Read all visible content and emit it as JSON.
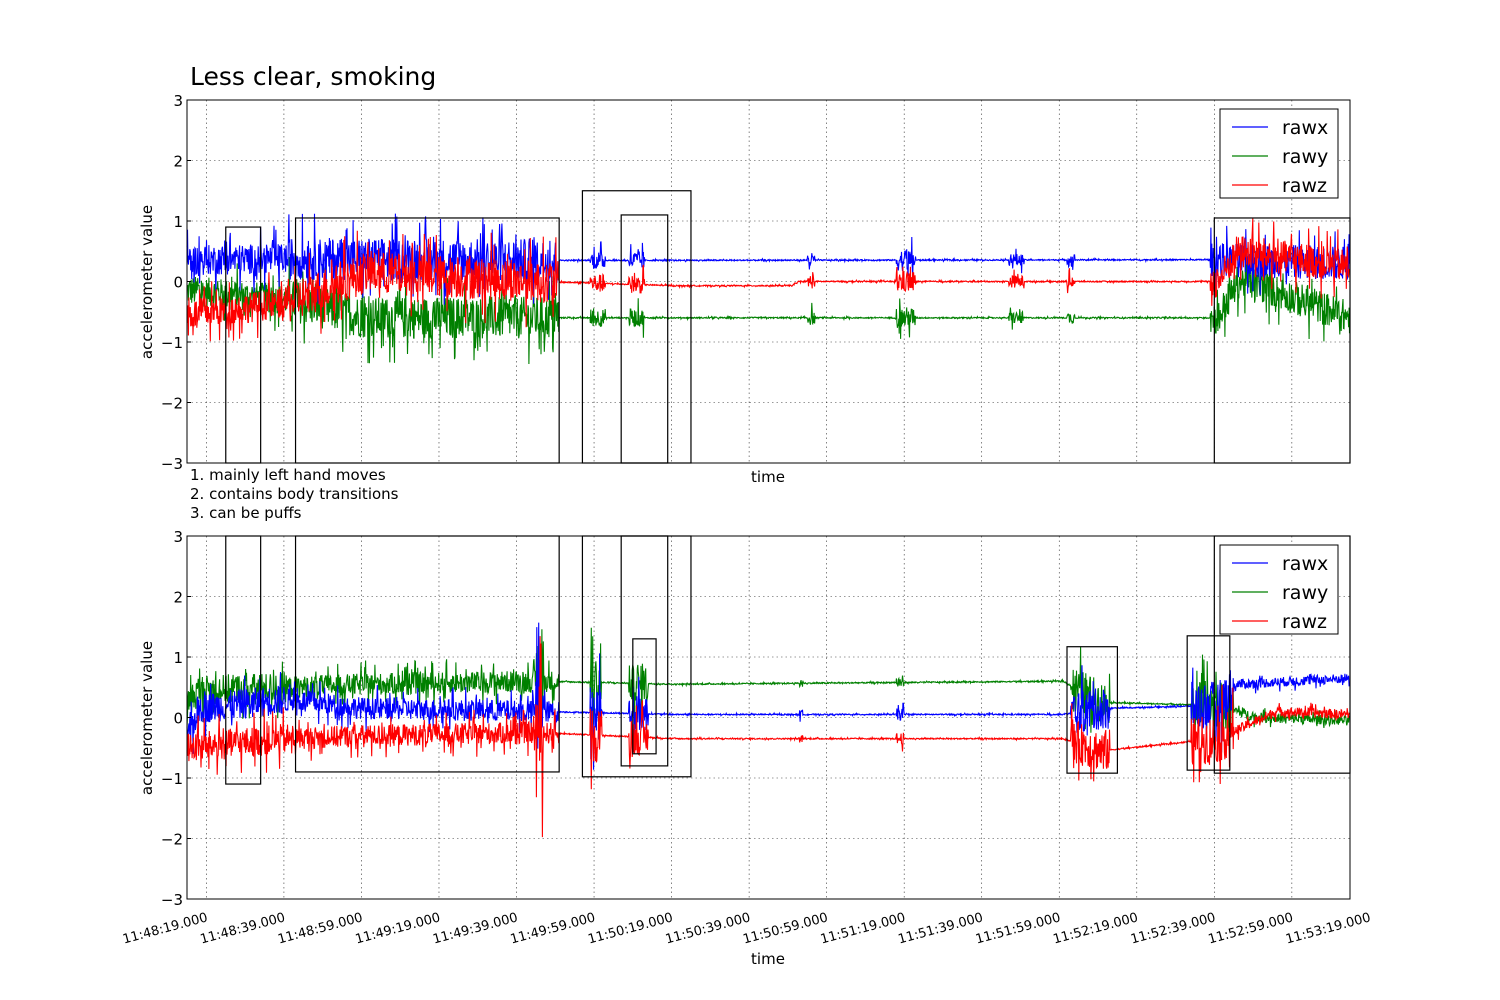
{
  "chart_data": [
    {
      "type": "line",
      "title": "Less clear, smoking",
      "xlabel": "time",
      "ylabel": "accelerometer value",
      "ylim": [
        -3,
        3
      ],
      "yticks": [
        "3",
        "2",
        "1",
        "0",
        "−1",
        "−2",
        "−3"
      ],
      "xlim": [
        "11:48:14",
        "11:53:14"
      ],
      "grid": true,
      "legend_position": "top-right",
      "legend": [
        "rawx",
        "rawy",
        "rawz"
      ],
      "colors": {
        "rawx": "#0000ff",
        "rawy": "#008000",
        "rawz": "#ff0000"
      },
      "series": [
        {
          "name": "rawx",
          "baseline": [
            {
              "x": "11:48:14",
              "y": 0.35
            },
            {
              "x": "11:48:40",
              "y": 0.38
            },
            {
              "x": "11:49:45",
              "y": 0.35
            },
            {
              "x": "11:50:20",
              "y": 0.35
            },
            {
              "x": "11:52:40",
              "y": 0.36
            },
            {
              "x": "11:53:14",
              "y": 0.3
            }
          ]
        },
        {
          "name": "rawy",
          "baseline": [
            {
              "x": "11:48:14",
              "y": -0.15
            },
            {
              "x": "11:48:40",
              "y": -0.3
            },
            {
              "x": "11:49:00",
              "y": -0.6
            },
            {
              "x": "11:49:45",
              "y": -0.6
            },
            {
              "x": "11:52:40",
              "y": -0.6
            },
            {
              "x": "11:52:45",
              "y": 0.0
            },
            {
              "x": "11:52:50",
              "y": -0.05
            },
            {
              "x": "11:53:14",
              "y": -0.6
            }
          ]
        },
        {
          "name": "rawz",
          "baseline": [
            {
              "x": "11:48:14",
              "y": -0.55
            },
            {
              "x": "11:48:40",
              "y": -0.35
            },
            {
              "x": "11:49:00",
              "y": 0.15
            },
            {
              "x": "11:49:45",
              "y": 0.0
            },
            {
              "x": "11:50:20",
              "y": -0.07
            },
            {
              "x": "11:50:50",
              "y": -0.07
            },
            {
              "x": "11:50:52",
              "y": 0.0
            },
            {
              "x": "11:52:40",
              "y": 0.0
            },
            {
              "x": "11:52:45",
              "y": 0.5
            },
            {
              "x": "11:53:14",
              "y": 0.25
            }
          ]
        }
      ],
      "highlight_boxes": [
        {
          "x": [
            "11:48:24",
            "11:48:33"
          ],
          "y": [
            -3,
            0.9
          ]
        },
        {
          "x": [
            "11:48:42",
            "11:49:50"
          ],
          "y": [
            -3,
            1.05
          ]
        },
        {
          "x": [
            "11:49:56",
            "11:50:24"
          ],
          "y": [
            -3,
            1.5
          ]
        },
        {
          "x": [
            "11:50:06",
            "11:50:18"
          ],
          "y": [
            -3,
            1.1
          ]
        },
        {
          "x": [
            "11:52:39",
            "11:53:14"
          ],
          "y": [
            -3,
            1.05
          ]
        }
      ]
    },
    {
      "type": "line",
      "xlabel": "time",
      "ylabel": "accelerometer value",
      "ylim": [
        -3,
        3
      ],
      "yticks": [
        "3",
        "2",
        "1",
        "0",
        "−1",
        "−2",
        "−3"
      ],
      "xlim": [
        "11:48:14",
        "11:53:14"
      ],
      "xticks": [
        "11:48:19.000",
        "11:48:39.000",
        "11:48:59.000",
        "11:49:19.000",
        "11:49:39.000",
        "11:49:59.000",
        "11:50:19.000",
        "11:50:39.000",
        "11:50:59.000",
        "11:51:19.000",
        "11:51:39.000",
        "11:51:59.000",
        "11:52:19.000",
        "11:52:39.000",
        "11:52:59.000",
        "11:53:19.000"
      ],
      "grid": true,
      "legend_position": "top-right",
      "legend": [
        "rawx",
        "rawy",
        "rawz"
      ],
      "colors": {
        "rawx": "#0000ff",
        "rawy": "#008000",
        "rawz": "#ff0000"
      },
      "series": [
        {
          "name": "rawx",
          "baseline": [
            {
              "x": "11:48:14",
              "y": -0.4
            },
            {
              "x": "11:48:17",
              "y": 0.15
            },
            {
              "x": "11:48:40",
              "y": 0.3
            },
            {
              "x": "11:49:00",
              "y": 0.15
            },
            {
              "x": "11:49:45",
              "y": 0.1
            },
            {
              "x": "11:50:20",
              "y": 0.05
            },
            {
              "x": "11:52:00",
              "y": 0.05
            },
            {
              "x": "11:52:10",
              "y": 0.15
            },
            {
              "x": "11:52:40",
              "y": 0.2
            },
            {
              "x": "11:52:45",
              "y": 0.55
            },
            {
              "x": "11:53:14",
              "y": 0.65
            }
          ]
        },
        {
          "name": "rawy",
          "baseline": [
            {
              "x": "11:48:14",
              "y": 0.2
            },
            {
              "x": "11:48:17",
              "y": 0.45
            },
            {
              "x": "11:48:40",
              "y": 0.5
            },
            {
              "x": "11:49:00",
              "y": 0.55
            },
            {
              "x": "11:49:45",
              "y": 0.6
            },
            {
              "x": "11:50:20",
              "y": 0.55
            },
            {
              "x": "11:52:00",
              "y": 0.6
            },
            {
              "x": "11:52:10",
              "y": 0.25
            },
            {
              "x": "11:52:40",
              "y": 0.2
            },
            {
              "x": "11:52:50",
              "y": 0.0
            },
            {
              "x": "11:53:14",
              "y": -0.05
            }
          ]
        },
        {
          "name": "rawz",
          "baseline": [
            {
              "x": "11:48:14",
              "y": -0.5
            },
            {
              "x": "11:48:40",
              "y": -0.35
            },
            {
              "x": "11:49:00",
              "y": -0.3
            },
            {
              "x": "11:49:45",
              "y": -0.25
            },
            {
              "x": "11:50:20",
              "y": -0.35
            },
            {
              "x": "11:52:00",
              "y": -0.35
            },
            {
              "x": "11:52:10",
              "y": -0.55
            },
            {
              "x": "11:52:40",
              "y": -0.35
            },
            {
              "x": "11:52:55",
              "y": 0.1
            },
            {
              "x": "11:53:14",
              "y": 0.05
            }
          ]
        }
      ],
      "highlight_boxes": [
        {
          "x": [
            "11:48:24",
            "11:48:33"
          ],
          "y": [
            -1.1,
            3
          ]
        },
        {
          "x": [
            "11:48:42",
            "11:49:50"
          ],
          "y": [
            -0.9,
            3
          ]
        },
        {
          "x": [
            "11:49:56",
            "11:50:24"
          ],
          "y": [
            -0.98,
            3
          ]
        },
        {
          "x": [
            "11:50:06",
            "11:50:18"
          ],
          "y": [
            -0.8,
            3
          ]
        },
        {
          "x": [
            "11:50:09",
            "11:50:15"
          ],
          "y": [
            -0.6,
            1.3
          ]
        },
        {
          "x": [
            "11:52:01",
            "11:52:14"
          ],
          "y": [
            -0.92,
            1.17
          ]
        },
        {
          "x": [
            "11:52:32",
            "11:52:43"
          ],
          "y": [
            -0.87,
            1.35
          ]
        },
        {
          "x": [
            "11:52:39",
            "11:53:14"
          ],
          "y": [
            -0.92,
            3
          ]
        }
      ]
    }
  ],
  "notes": [
    "1. mainly left hand moves",
    "2. contains body transitions",
    "3. can be puffs"
  ]
}
